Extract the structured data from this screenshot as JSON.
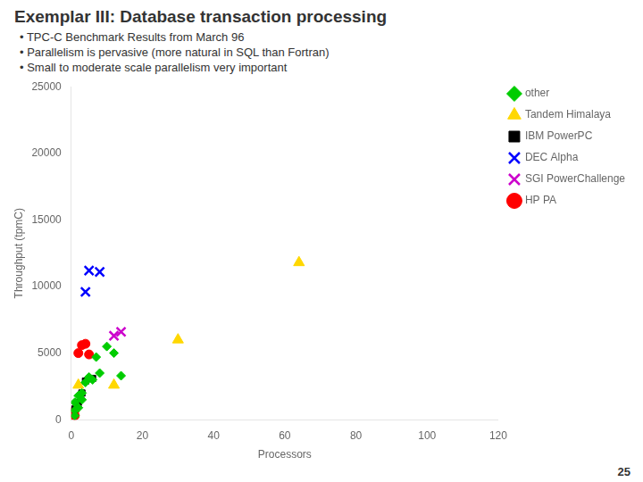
{
  "chart_data": {
    "type": "scatter",
    "title": "Exemplar III: Database transaction processing",
    "annotations": [
      "• TPC-C Benchmark Results from March 96",
      "• Parallelism is pervasive (more natural in SQL than Fortran)",
      "• Small to moderate scale parallelism very important",
      "25"
    ],
    "xlabel": "Processors",
    "ylabel": "Throughput (tpmC)",
    "xlim": [
      0,
      120
    ],
    "ylim": [
      0,
      25000
    ],
    "xticks": [
      0,
      20,
      40,
      60,
      80,
      100,
      120
    ],
    "yticks": [
      0,
      5000,
      10000,
      15000,
      20000,
      25000
    ],
    "grid": false,
    "legend": "upper right",
    "series": [
      {
        "name": "other",
        "color": "#00CC00",
        "marker": "diamond",
        "x": [
          1,
          1,
          1,
          2,
          2,
          3,
          3,
          4,
          5,
          6,
          7,
          8,
          10,
          12,
          14
        ],
        "values": [
          300,
          700,
          1300,
          900,
          1800,
          1500,
          2000,
          2800,
          3200,
          3000,
          4700,
          3500,
          5500,
          5000,
          3300
        ]
      },
      {
        "name": "Tandem Himalaya",
        "color": "#FFD700",
        "marker": "triangle",
        "x": [
          2,
          12,
          30,
          64
        ],
        "values": [
          2600,
          2600,
          6000,
          11800
        ]
      },
      {
        "name": "IBM PowerPC",
        "color": "#000000",
        "marker": "square",
        "x": [
          1,
          2,
          3,
          4,
          6
        ],
        "values": [
          800,
          1300,
          2000,
          2900,
          3100
        ]
      },
      {
        "name": "DEC Alpha",
        "color": "#0000FF",
        "marker": "x",
        "x": [
          4,
          5,
          8
        ],
        "values": [
          9600,
          11200,
          11100
        ]
      },
      {
        "name": "SGI PowerChallenge",
        "color": "#CC00CC",
        "marker": "x",
        "x": [
          12,
          14
        ],
        "values": [
          6300,
          6600
        ]
      },
      {
        "name": "HP PA",
        "color": "#FF0000",
        "marker": "circle",
        "x": [
          1,
          1,
          2,
          3,
          4,
          5
        ],
        "values": [
          300,
          700,
          5000,
          5600,
          5700,
          4900
        ]
      }
    ]
  }
}
